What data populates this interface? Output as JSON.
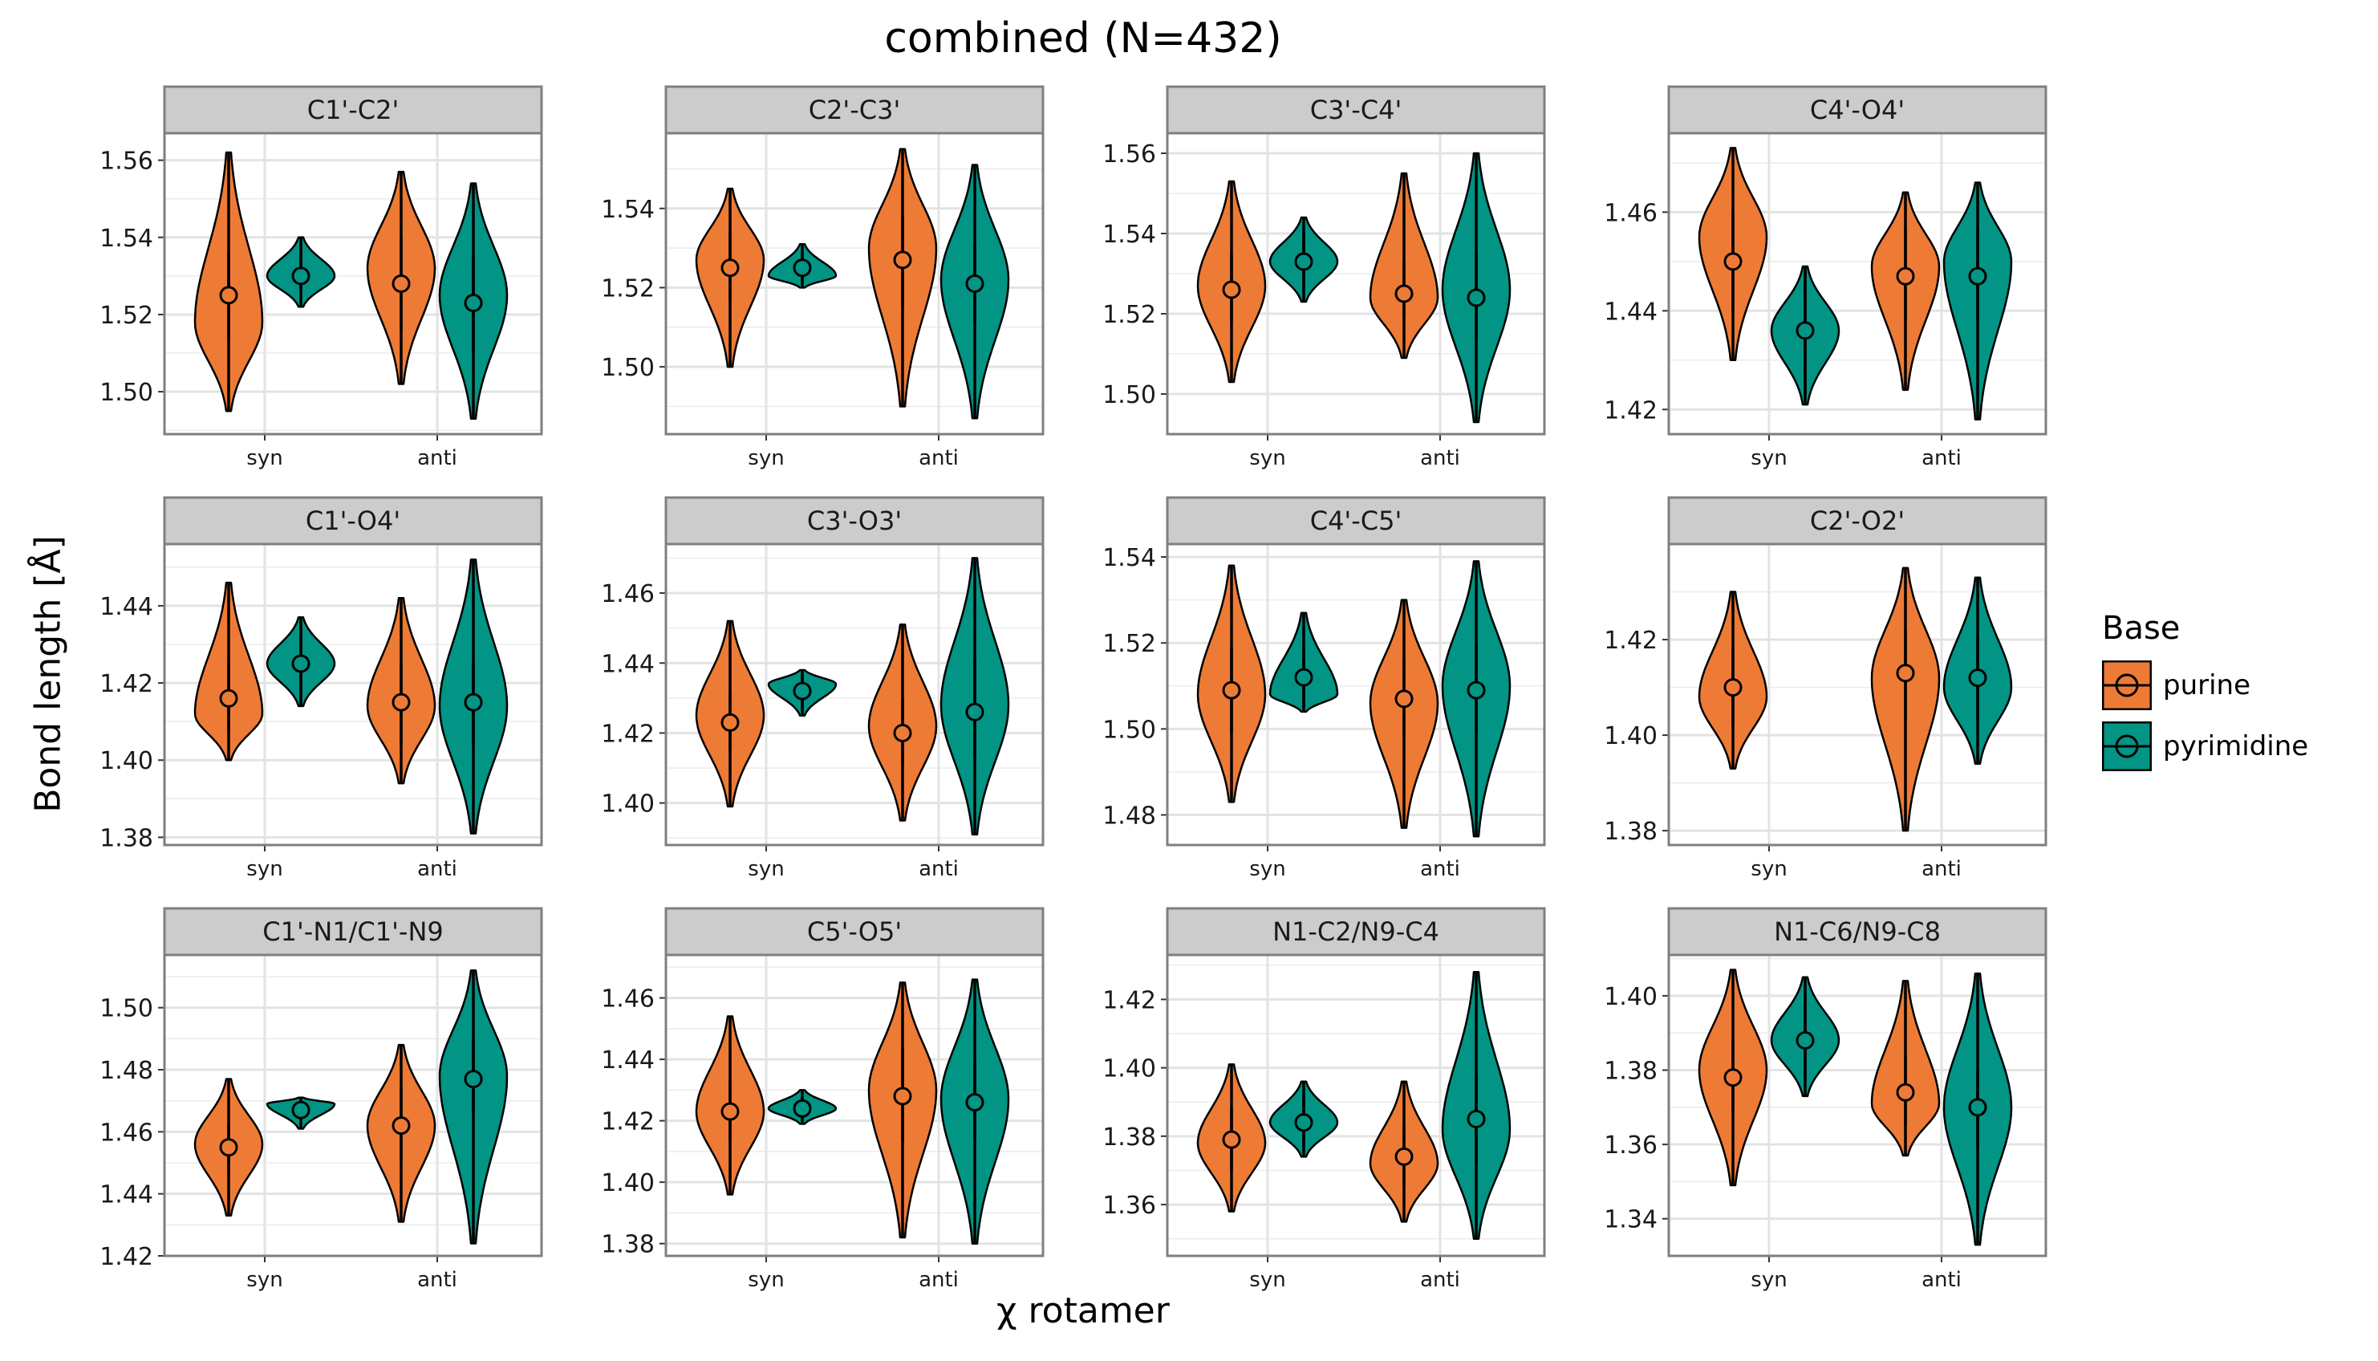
{
  "chart_data": {
    "type": "violin",
    "title": "combined (N=432)",
    "xlabel": "χ rotamer",
    "ylabel": "Bond length [Å]",
    "categories": [
      "syn",
      "anti"
    ],
    "legend": {
      "title": "Base",
      "placement": "right",
      "entries": [
        {
          "name": "purine",
          "color": "#ED7B35"
        },
        {
          "name": "pyrimidine",
          "color": "#029484"
        }
      ]
    },
    "grid": true,
    "facets": [
      {
        "title": "C1'-C2'",
        "ylim": [
          1.489,
          1.567
        ],
        "yticks": [
          "1.50",
          "1.52",
          "1.54",
          "1.56"
        ],
        "groups": [
          {
            "x": "syn",
            "base": "purine",
            "median": 1.525,
            "q1": 1.514,
            "q3": 1.536,
            "min": 1.495,
            "max": 1.562,
            "peak": 1.518
          },
          {
            "x": "syn",
            "base": "pyrimidine",
            "median": 1.53,
            "q1": 1.526,
            "q3": 1.537,
            "min": 1.522,
            "max": 1.54,
            "peak": 1.53
          },
          {
            "x": "anti",
            "base": "purine",
            "median": 1.528,
            "q1": 1.516,
            "q3": 1.54,
            "min": 1.502,
            "max": 1.557,
            "peak": 1.532
          },
          {
            "x": "anti",
            "base": "pyrimidine",
            "median": 1.523,
            "q1": 1.51,
            "q3": 1.535,
            "min": 1.493,
            "max": 1.554,
            "peak": 1.525
          }
        ]
      },
      {
        "title": "C2'-C3'",
        "ylim": [
          1.483,
          1.559
        ],
        "yticks": [
          "1.50",
          "1.52",
          "1.54"
        ],
        "groups": [
          {
            "x": "syn",
            "base": "purine",
            "median": 1.525,
            "q1": 1.517,
            "q3": 1.534,
            "min": 1.5,
            "max": 1.545,
            "peak": 1.527
          },
          {
            "x": "syn",
            "base": "pyrimidine",
            "median": 1.525,
            "q1": 1.521,
            "q3": 1.529,
            "min": 1.52,
            "max": 1.531,
            "peak": 1.523
          },
          {
            "x": "anti",
            "base": "purine",
            "median": 1.527,
            "q1": 1.515,
            "q3": 1.538,
            "min": 1.49,
            "max": 1.555,
            "peak": 1.53
          },
          {
            "x": "anti",
            "base": "pyrimidine",
            "median": 1.521,
            "q1": 1.511,
            "q3": 1.531,
            "min": 1.487,
            "max": 1.551,
            "peak": 1.522
          }
        ]
      },
      {
        "title": "C3'-C4'",
        "ylim": [
          1.49,
          1.565
        ],
        "yticks": [
          "1.50",
          "1.52",
          "1.54",
          "1.56"
        ],
        "groups": [
          {
            "x": "syn",
            "base": "purine",
            "median": 1.526,
            "q1": 1.518,
            "q3": 1.535,
            "min": 1.503,
            "max": 1.553,
            "peak": 1.527
          },
          {
            "x": "syn",
            "base": "pyrimidine",
            "median": 1.533,
            "q1": 1.527,
            "q3": 1.54,
            "min": 1.523,
            "max": 1.544,
            "peak": 1.533
          },
          {
            "x": "anti",
            "base": "purine",
            "median": 1.525,
            "q1": 1.519,
            "q3": 1.533,
            "min": 1.509,
            "max": 1.555,
            "peak": 1.524
          },
          {
            "x": "anti",
            "base": "pyrimidine",
            "median": 1.524,
            "q1": 1.514,
            "q3": 1.535,
            "min": 1.493,
            "max": 1.56,
            "peak": 1.526
          }
        ]
      },
      {
        "title": "C4'-O4'",
        "ylim": [
          1.415,
          1.476
        ],
        "yticks": [
          "1.42",
          "1.44",
          "1.46"
        ],
        "groups": [
          {
            "x": "syn",
            "base": "purine",
            "median": 1.45,
            "q1": 1.44,
            "q3": 1.46,
            "min": 1.43,
            "max": 1.473,
            "peak": 1.455
          },
          {
            "x": "syn",
            "base": "pyrimidine",
            "median": 1.436,
            "q1": 1.423,
            "q3": 1.448,
            "min": 1.421,
            "max": 1.449,
            "peak": 1.436
          },
          {
            "x": "anti",
            "base": "purine",
            "median": 1.447,
            "q1": 1.438,
            "q3": 1.457,
            "min": 1.424,
            "max": 1.464,
            "peak": 1.449
          },
          {
            "x": "anti",
            "base": "pyrimidine",
            "median": 1.447,
            "q1": 1.438,
            "q3": 1.457,
            "min": 1.418,
            "max": 1.466,
            "peak": 1.45
          }
        ]
      },
      {
        "title": "C1'-O4'",
        "ylim": [
          1.378,
          1.456
        ],
        "yticks": [
          "1.38",
          "1.40",
          "1.42",
          "1.44"
        ],
        "groups": [
          {
            "x": "syn",
            "base": "purine",
            "median": 1.416,
            "q1": 1.408,
            "q3": 1.425,
            "min": 1.4,
            "max": 1.446,
            "peak": 1.412
          },
          {
            "x": "syn",
            "base": "pyrimidine",
            "median": 1.425,
            "q1": 1.414,
            "q3": 1.436,
            "min": 1.414,
            "max": 1.437,
            "peak": 1.425
          },
          {
            "x": "anti",
            "base": "purine",
            "median": 1.415,
            "q1": 1.404,
            "q3": 1.425,
            "min": 1.394,
            "max": 1.442,
            "peak": 1.414
          },
          {
            "x": "anti",
            "base": "pyrimidine",
            "median": 1.415,
            "q1": 1.404,
            "q3": 1.425,
            "min": 1.381,
            "max": 1.452,
            "peak": 1.414
          }
        ]
      },
      {
        "title": "C3'-O3'",
        "ylim": [
          1.388,
          1.474
        ],
        "yticks": [
          "1.40",
          "1.42",
          "1.44",
          "1.46"
        ],
        "groups": [
          {
            "x": "syn",
            "base": "purine",
            "median": 1.423,
            "q1": 1.415,
            "q3": 1.431,
            "min": 1.399,
            "max": 1.452,
            "peak": 1.425
          },
          {
            "x": "syn",
            "base": "pyrimidine",
            "median": 1.432,
            "q1": 1.427,
            "q3": 1.437,
            "min": 1.425,
            "max": 1.438,
            "peak": 1.434
          },
          {
            "x": "anti",
            "base": "purine",
            "median": 1.42,
            "q1": 1.411,
            "q3": 1.43,
            "min": 1.395,
            "max": 1.451,
            "peak": 1.422
          },
          {
            "x": "anti",
            "base": "pyrimidine",
            "median": 1.426,
            "q1": 1.413,
            "q3": 1.441,
            "min": 1.391,
            "max": 1.47,
            "peak": 1.428
          }
        ]
      },
      {
        "title": "C4'-C5'",
        "ylim": [
          1.473,
          1.543
        ],
        "yticks": [
          "1.48",
          "1.50",
          "1.52",
          "1.54"
        ],
        "groups": [
          {
            "x": "syn",
            "base": "purine",
            "median": 1.509,
            "q1": 1.499,
            "q3": 1.519,
            "min": 1.483,
            "max": 1.538,
            "peak": 1.508
          },
          {
            "x": "syn",
            "base": "pyrimidine",
            "median": 1.512,
            "q1": 1.505,
            "q3": 1.519,
            "min": 1.504,
            "max": 1.527,
            "peak": 1.508
          },
          {
            "x": "anti",
            "base": "purine",
            "median": 1.507,
            "q1": 1.498,
            "q3": 1.516,
            "min": 1.477,
            "max": 1.53,
            "peak": 1.506
          },
          {
            "x": "anti",
            "base": "pyrimidine",
            "median": 1.509,
            "q1": 1.499,
            "q3": 1.52,
            "min": 1.475,
            "max": 1.539,
            "peak": 1.51
          }
        ]
      },
      {
        "title": "C2'-O2'",
        "ylim": [
          1.377,
          1.44
        ],
        "yticks": [
          "1.38",
          "1.40",
          "1.42"
        ],
        "groups": [
          {
            "x": "syn",
            "base": "purine",
            "median": 1.41,
            "q1": 1.402,
            "q3": 1.418,
            "min": 1.393,
            "max": 1.43,
            "peak": 1.408
          },
          {
            "x": "anti",
            "base": "purine",
            "median": 1.413,
            "q1": 1.403,
            "q3": 1.422,
            "min": 1.38,
            "max": 1.435,
            "peak": 1.412
          },
          {
            "x": "anti",
            "base": "pyrimidine",
            "median": 1.412,
            "q1": 1.403,
            "q3": 1.421,
            "min": 1.394,
            "max": 1.433,
            "peak": 1.41
          }
        ]
      },
      {
        "title": "C1'-N1/C1'-N9",
        "ylim": [
          1.42,
          1.517
        ],
        "yticks": [
          "1.42",
          "1.44",
          "1.46",
          "1.48",
          "1.50"
        ],
        "groups": [
          {
            "x": "syn",
            "base": "purine",
            "median": 1.455,
            "q1": 1.448,
            "q3": 1.462,
            "min": 1.433,
            "max": 1.477,
            "peak": 1.456
          },
          {
            "x": "syn",
            "base": "pyrimidine",
            "median": 1.467,
            "q1": 1.464,
            "q3": 1.47,
            "min": 1.461,
            "max": 1.471,
            "peak": 1.469
          },
          {
            "x": "anti",
            "base": "purine",
            "median": 1.462,
            "q1": 1.451,
            "q3": 1.474,
            "min": 1.431,
            "max": 1.488,
            "peak": 1.462
          },
          {
            "x": "anti",
            "base": "pyrimidine",
            "median": 1.477,
            "q1": 1.466,
            "q3": 1.49,
            "min": 1.424,
            "max": 1.512,
            "peak": 1.478
          }
        ]
      },
      {
        "title": "C5'-O5'",
        "ylim": [
          1.376,
          1.474
        ],
        "yticks": [
          "1.38",
          "1.40",
          "1.42",
          "1.44",
          "1.46"
        ],
        "groups": [
          {
            "x": "syn",
            "base": "purine",
            "median": 1.423,
            "q1": 1.413,
            "q3": 1.433,
            "min": 1.396,
            "max": 1.454,
            "peak": 1.423
          },
          {
            "x": "syn",
            "base": "pyrimidine",
            "median": 1.424,
            "q1": 1.42,
            "q3": 1.428,
            "min": 1.419,
            "max": 1.43,
            "peak": 1.424
          },
          {
            "x": "anti",
            "base": "purine",
            "median": 1.428,
            "q1": 1.413,
            "q3": 1.444,
            "min": 1.382,
            "max": 1.465,
            "peak": 1.43
          },
          {
            "x": "anti",
            "base": "pyrimidine",
            "median": 1.426,
            "q1": 1.414,
            "q3": 1.439,
            "min": 1.38,
            "max": 1.466,
            "peak": 1.427
          }
        ]
      },
      {
        "title": "N1-C2/N9-C4",
        "ylim": [
          1.345,
          1.433
        ],
        "yticks": [
          "1.36",
          "1.38",
          "1.40",
          "1.42"
        ],
        "groups": [
          {
            "x": "syn",
            "base": "purine",
            "median": 1.379,
            "q1": 1.37,
            "q3": 1.388,
            "min": 1.358,
            "max": 1.401,
            "peak": 1.378
          },
          {
            "x": "syn",
            "base": "pyrimidine",
            "median": 1.384,
            "q1": 1.377,
            "q3": 1.391,
            "min": 1.374,
            "max": 1.396,
            "peak": 1.384
          },
          {
            "x": "anti",
            "base": "purine",
            "median": 1.374,
            "q1": 1.365,
            "q3": 1.383,
            "min": 1.355,
            "max": 1.396,
            "peak": 1.372
          },
          {
            "x": "anti",
            "base": "pyrimidine",
            "median": 1.385,
            "q1": 1.372,
            "q3": 1.398,
            "min": 1.35,
            "max": 1.428,
            "peak": 1.382
          }
        ]
      },
      {
        "title": "N1-C6/N9-C8",
        "ylim": [
          1.33,
          1.411
        ],
        "yticks": [
          "1.34",
          "1.36",
          "1.38",
          "1.40"
        ],
        "groups": [
          {
            "x": "syn",
            "base": "purine",
            "median": 1.378,
            "q1": 1.369,
            "q3": 1.388,
            "min": 1.349,
            "max": 1.407,
            "peak": 1.38
          },
          {
            "x": "syn",
            "base": "pyrimidine",
            "median": 1.388,
            "q1": 1.377,
            "q3": 1.4,
            "min": 1.373,
            "max": 1.405,
            "peak": 1.388
          },
          {
            "x": "anti",
            "base": "purine",
            "median": 1.374,
            "q1": 1.365,
            "q3": 1.384,
            "min": 1.357,
            "max": 1.404,
            "peak": 1.371
          },
          {
            "x": "anti",
            "base": "pyrimidine",
            "median": 1.37,
            "q1": 1.359,
            "q3": 1.38,
            "min": 1.333,
            "max": 1.406,
            "peak": 1.37
          }
        ]
      }
    ]
  }
}
